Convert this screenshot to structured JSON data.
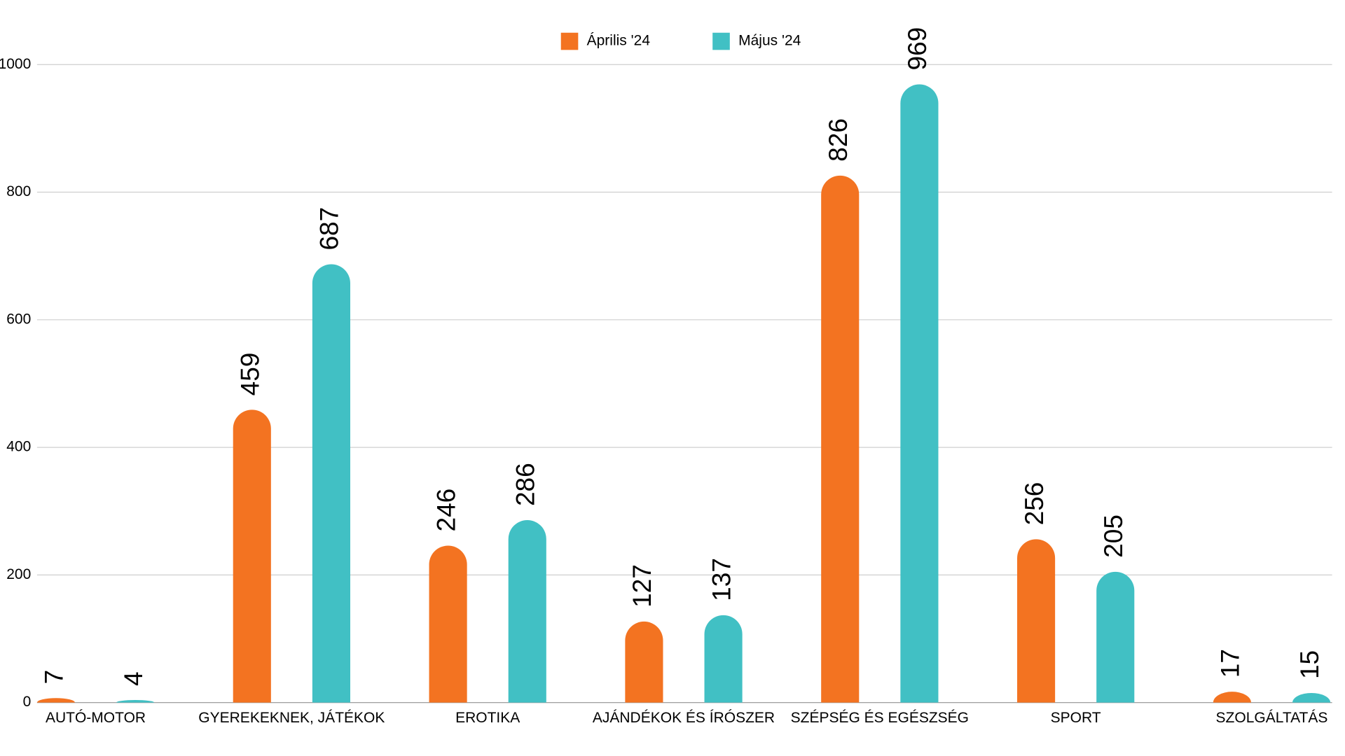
{
  "chart_data": {
    "type": "bar",
    "categories": [
      "AUTÓ-MOTOR",
      "GYEREKEKNEK, JÁTÉKOK",
      "EROTIKA",
      "AJÁNDÉKOK ÉS ÍRÓSZER",
      "SZÉPSÉG ÉS EGÉSZSÉG",
      "SPORT",
      "SZOLGÁLTATÁS"
    ],
    "series": [
      {
        "name": "Április '24",
        "color": "#f37321",
        "values": [
          7,
          459,
          246,
          127,
          826,
          256,
          17
        ]
      },
      {
        "name": "Május '24",
        "color": "#41c0c4",
        "values": [
          4,
          687,
          286,
          137,
          969,
          205,
          15
        ]
      }
    ],
    "ylim": [
      0,
      1000
    ],
    "yticks": [
      0,
      200,
      400,
      600,
      800,
      1000
    ],
    "grid": true,
    "legend": "top"
  }
}
